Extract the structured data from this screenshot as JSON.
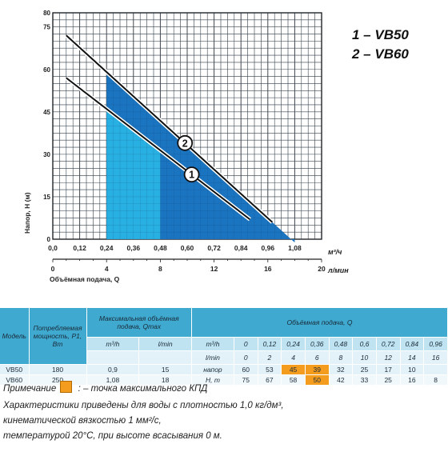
{
  "chart_data": {
    "type": "line",
    "y_axis": {
      "label": "Напор, Н (м)",
      "ticks": [
        "0",
        "15",
        "30",
        "45",
        "60",
        "75",
        "80"
      ],
      "range": [
        0,
        80
      ]
    },
    "x_axis_top": {
      "unit": "м³/ч",
      "ticks": [
        "0,0",
        "0,12",
        "0,24",
        "0,36",
        "0,48",
        "0,60",
        "0,72",
        "0,84",
        "0,96",
        "1,08"
      ],
      "range": [
        0,
        1.2
      ]
    },
    "x_axis_bottom": {
      "label": "Объёмная подача, Q",
      "unit": "л/мин",
      "ticks": [
        "0",
        "4",
        "8",
        "12",
        "16",
        "20"
      ],
      "range": [
        0,
        20
      ]
    },
    "series": [
      {
        "name": "1",
        "q": [
          0.06,
          0.88
        ],
        "h": [
          57,
          7
        ]
      },
      {
        "name": "2",
        "q": [
          0.06,
          0.98
        ],
        "h": [
          72,
          6
        ]
      }
    ],
    "shaded_regions": [
      {
        "series": "1",
        "q_range": [
          0.24,
          0.9
        ],
        "color": "#29b0e2"
      },
      {
        "series": "2",
        "q_range": [
          0.36,
          1.08
        ],
        "color": "#1b74c0"
      }
    ],
    "grid": true,
    "colors": {
      "grid": "#4a4a4a",
      "light_fill": "#29b0e2",
      "dark_fill": "#1b74c0",
      "highlight": "#f39c1e"
    }
  },
  "models": [
    "1 – VB50",
    "2 – VB60"
  ],
  "table": {
    "headers": {
      "model": "Модель",
      "power": "Потребляемая мощность, Р1, Вт",
      "qmax": "Максимальная объёмная подача, Qmax",
      "flow": "Объёмная подача, Q",
      "m3h": "m³/h",
      "lmin": "l/min",
      "head_label": "напор",
      "head_unit": "Н, m"
    },
    "flow_m3h": [
      "0",
      "0,12",
      "0,24",
      "0,36",
      "0,48",
      "0,6",
      "0,72",
      "0,84",
      "0,96"
    ],
    "flow_lmin": [
      "0",
      "2",
      "4",
      "6",
      "8",
      "10",
      "12",
      "14",
      "16"
    ],
    "rows": [
      {
        "model": "VB50",
        "power": "180",
        "qmax_m3h": "0,9",
        "qmax_lmin": "15",
        "heads": [
          "60",
          "53",
          "45",
          "39",
          "32",
          "25",
          "17",
          "10",
          ""
        ],
        "highlight": [
          2,
          3
        ]
      },
      {
        "model": "VB60",
        "power": "250",
        "qmax_m3h": "1,08",
        "qmax_lmin": "18",
        "heads": [
          "75",
          "67",
          "58",
          "50",
          "42",
          "33",
          "25",
          "16",
          "8"
        ],
        "highlight": [
          3
        ]
      }
    ]
  },
  "note": {
    "label": "Примечание",
    "text": ": – точка максимального КПД"
  },
  "description": [
    "Характеристики приведены для воды с плотностью 1,0 кг/дм³,",
    "кинематической вязкостью 1 мм²/с,",
    "температурой 20°С, при высоте всасывания 0 м."
  ]
}
